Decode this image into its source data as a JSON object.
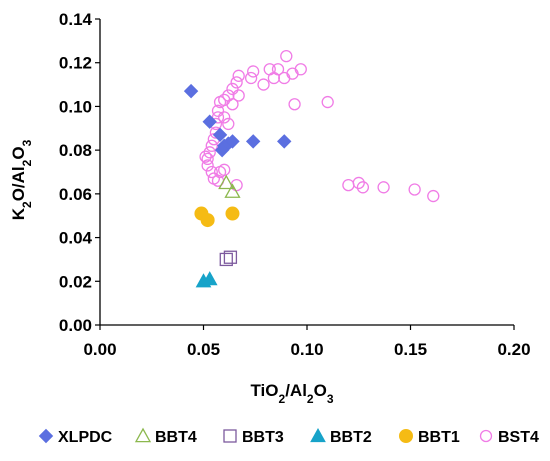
{
  "chart_data": {
    "type": "scatter",
    "xlabel": {
      "parts": [
        {
          "t": "TiO",
          "s": "n"
        },
        {
          "t": "2",
          "s": "sub"
        },
        {
          "t": "/Al",
          "s": "n"
        },
        {
          "t": "2",
          "s": "sub"
        },
        {
          "t": "O",
          "s": "n"
        },
        {
          "t": "3",
          "s": "sub"
        }
      ]
    },
    "ylabel": {
      "parts": [
        {
          "t": "K",
          "s": "n"
        },
        {
          "t": "2",
          "s": "sub"
        },
        {
          "t": "O/Al",
          "s": "n"
        },
        {
          "t": "2",
          "s": "sub"
        },
        {
          "t": "O",
          "s": "n"
        },
        {
          "t": "3",
          "s": "sub"
        }
      ]
    },
    "xlim": [
      0,
      0.2
    ],
    "ylim": [
      0,
      0.14
    ],
    "x_ticks": [
      "0.00",
      "0.05",
      "0.10",
      "0.15",
      "0.20"
    ],
    "y_ticks": [
      "0.00",
      "0.02",
      "0.04",
      "0.06",
      "0.08",
      "0.10",
      "0.12",
      "0.14"
    ],
    "grid": false,
    "legend_position": "bottom",
    "series": [
      {
        "name": "XLPDC",
        "marker": "diamond",
        "color": "#5b6fe0",
        "filled": true,
        "points": [
          [
            0.044,
            0.107
          ],
          [
            0.053,
            0.093
          ],
          [
            0.058,
            0.087
          ],
          [
            0.06,
            0.082
          ],
          [
            0.062,
            0.083
          ],
          [
            0.064,
            0.084
          ],
          [
            0.059,
            0.08
          ],
          [
            0.074,
            0.084
          ],
          [
            0.089,
            0.084
          ]
        ]
      },
      {
        "name": "BBT4",
        "marker": "triangle",
        "color": "#8cb84e",
        "filled": false,
        "points": [
          [
            0.061,
            0.065
          ],
          [
            0.064,
            0.061
          ]
        ]
      },
      {
        "name": "BBT3",
        "marker": "square",
        "color": "#7d5a9e",
        "filled": false,
        "points": [
          [
            0.061,
            0.03
          ],
          [
            0.063,
            0.031
          ]
        ]
      },
      {
        "name": "BBT2",
        "marker": "triangle",
        "color": "#17a3c9",
        "filled": true,
        "points": [
          [
            0.05,
            0.02
          ],
          [
            0.053,
            0.021
          ]
        ]
      },
      {
        "name": "BBT1",
        "marker": "circle",
        "color": "#f5bb14",
        "filled": true,
        "points": [
          [
            0.049,
            0.051
          ],
          [
            0.052,
            0.048
          ],
          [
            0.064,
            0.051
          ]
        ]
      },
      {
        "name": "BST4",
        "marker": "circle",
        "color": "#f07ce6",
        "filled": false,
        "points": [
          [
            0.067,
            0.114
          ],
          [
            0.066,
            0.111
          ],
          [
            0.064,
            0.108
          ],
          [
            0.062,
            0.105
          ],
          [
            0.06,
            0.103
          ],
          [
            0.058,
            0.102
          ],
          [
            0.057,
            0.098
          ],
          [
            0.057,
            0.095
          ],
          [
            0.056,
            0.092
          ],
          [
            0.056,
            0.088
          ],
          [
            0.055,
            0.085
          ],
          [
            0.054,
            0.082
          ],
          [
            0.053,
            0.079
          ],
          [
            0.052,
            0.076
          ],
          [
            0.051,
            0.077
          ],
          [
            0.052,
            0.073
          ],
          [
            0.054,
            0.07
          ],
          [
            0.055,
            0.067
          ],
          [
            0.057,
            0.066
          ],
          [
            0.058,
            0.07
          ],
          [
            0.06,
            0.071
          ],
          [
            0.066,
            0.064
          ],
          [
            0.064,
            0.101
          ],
          [
            0.067,
            0.105
          ],
          [
            0.06,
            0.095
          ],
          [
            0.062,
            0.092
          ],
          [
            0.073,
            0.113
          ],
          [
            0.074,
            0.116
          ],
          [
            0.079,
            0.11
          ],
          [
            0.082,
            0.117
          ],
          [
            0.084,
            0.113
          ],
          [
            0.086,
            0.117
          ],
          [
            0.089,
            0.113
          ],
          [
            0.09,
            0.123
          ],
          [
            0.093,
            0.115
          ],
          [
            0.097,
            0.117
          ],
          [
            0.094,
            0.101
          ],
          [
            0.11,
            0.102
          ],
          [
            0.12,
            0.064
          ],
          [
            0.125,
            0.065
          ],
          [
            0.127,
            0.063
          ],
          [
            0.137,
            0.063
          ],
          [
            0.152,
            0.062
          ],
          [
            0.161,
            0.059
          ]
        ]
      }
    ]
  }
}
